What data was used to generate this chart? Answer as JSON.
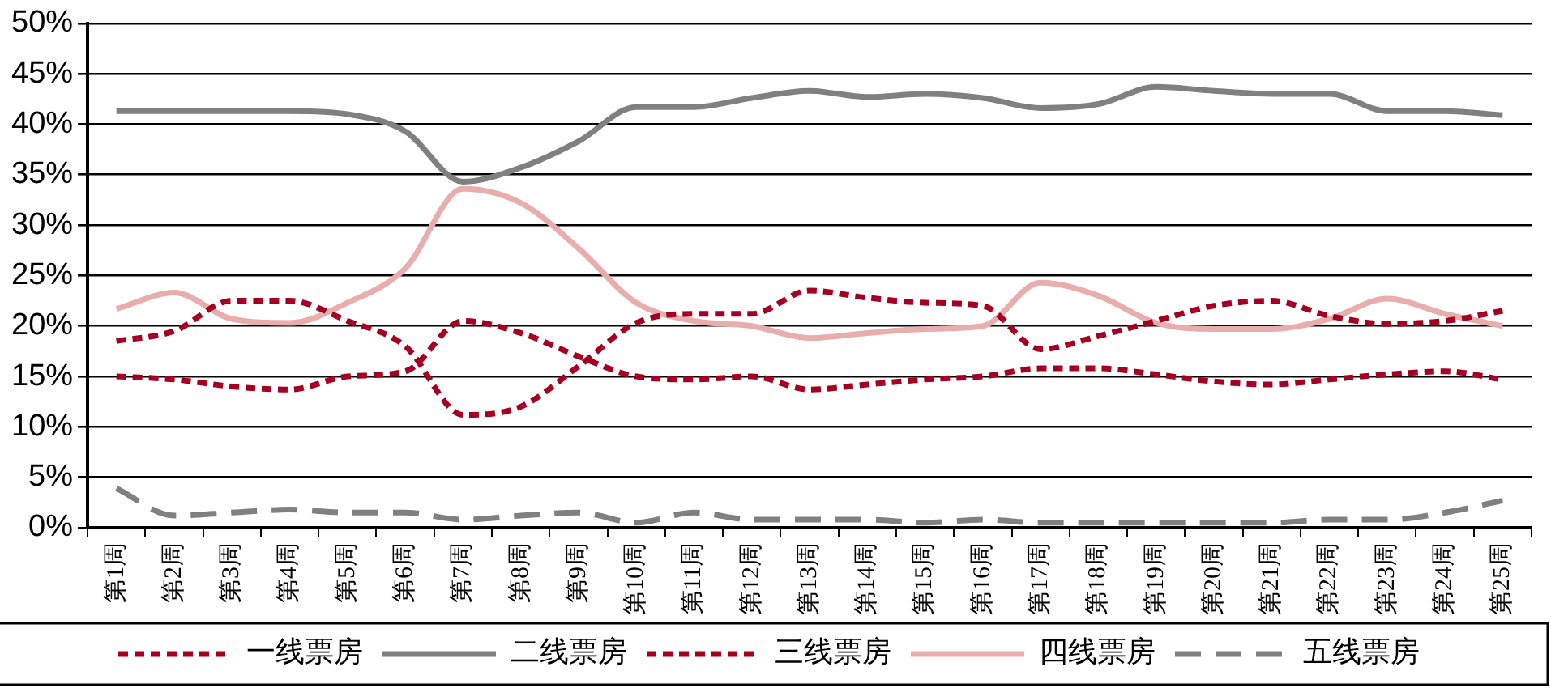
{
  "chart_data": {
    "type": "line",
    "categories": [
      "第1周",
      "第2周",
      "第3周",
      "第4周",
      "第5周",
      "第6周",
      "第7周",
      "第8周",
      "第9周",
      "第10周",
      "第11周",
      "第12周",
      "第13周",
      "第14周",
      "第15周",
      "第16周",
      "第17周",
      "第18周",
      "第19周",
      "第20周",
      "第21周",
      "第22周",
      "第23周",
      "第24周",
      "第25周"
    ],
    "series": [
      {
        "name": "一线票房",
        "color": "#a50021",
        "line_style": "dotted",
        "values": [
          15,
          14.7,
          14,
          13.7,
          15,
          15.5,
          20.5,
          19.3,
          17,
          15,
          14.7,
          15,
          13.7,
          14.2,
          14.7,
          15,
          15.8,
          15.8,
          15.2,
          14.5,
          14.2,
          14.7,
          15.2,
          15.5,
          14.7
        ]
      },
      {
        "name": "二线票房",
        "color": "#808080",
        "line_style": "solid",
        "values": [
          41.3,
          41.3,
          41.3,
          41.3,
          41,
          39.3,
          34.3,
          35.7,
          38.3,
          41.7,
          41.7,
          42.6,
          43.3,
          42.7,
          43,
          42.6,
          41.6,
          42,
          43.7,
          43.3,
          43,
          43,
          41.3,
          41.3,
          40.9
        ]
      },
      {
        "name": "三线票房",
        "color": "#a50021",
        "line_style": "dotted",
        "values": [
          18.5,
          19.5,
          22.5,
          22.5,
          20.5,
          18,
          11.2,
          12,
          16,
          20.3,
          21.2,
          21.2,
          23.5,
          22.8,
          22.3,
          22,
          17.7,
          19,
          20.5,
          22,
          22.5,
          21,
          20.2,
          20.5,
          21.5
        ]
      },
      {
        "name": "四线票房",
        "color": "#e8aeae",
        "line_style": "solid",
        "values": [
          21.7,
          23.3,
          20.7,
          20.3,
          22.3,
          25.7,
          33.6,
          32.2,
          27.7,
          22.3,
          20.5,
          20,
          18.8,
          19.3,
          19.7,
          20,
          24.3,
          23,
          20.3,
          19.7,
          19.7,
          20.7,
          22.7,
          21.2,
          20
        ]
      },
      {
        "name": "五线票房",
        "color": "#808080",
        "line_style": "dashed",
        "values": [
          3.9,
          1.2,
          1.5,
          1.8,
          1.5,
          1.5,
          0.8,
          1.2,
          1.5,
          0.5,
          1.5,
          0.8,
          0.8,
          0.8,
          0.5,
          0.8,
          0.5,
          0.5,
          0.5,
          0.5,
          0.5,
          0.8,
          0.8,
          1.5,
          2.7
        ]
      }
    ],
    "ylim": [
      0,
      50
    ],
    "yticks": [
      {
        "value": 0,
        "label": "0%"
      },
      {
        "value": 5,
        "label": "5%"
      },
      {
        "value": 10,
        "label": "10%"
      },
      {
        "value": 15,
        "label": "15%"
      },
      {
        "value": 20,
        "label": "20%"
      },
      {
        "value": 25,
        "label": "25%"
      },
      {
        "value": 30,
        "label": "30%"
      },
      {
        "value": 35,
        "label": "35%"
      },
      {
        "value": 40,
        "label": "40%"
      },
      {
        "value": 45,
        "label": "45%"
      },
      {
        "value": 50,
        "label": "50%"
      }
    ],
    "grid": "y",
    "legend": "bottom",
    "marker": "none"
  }
}
